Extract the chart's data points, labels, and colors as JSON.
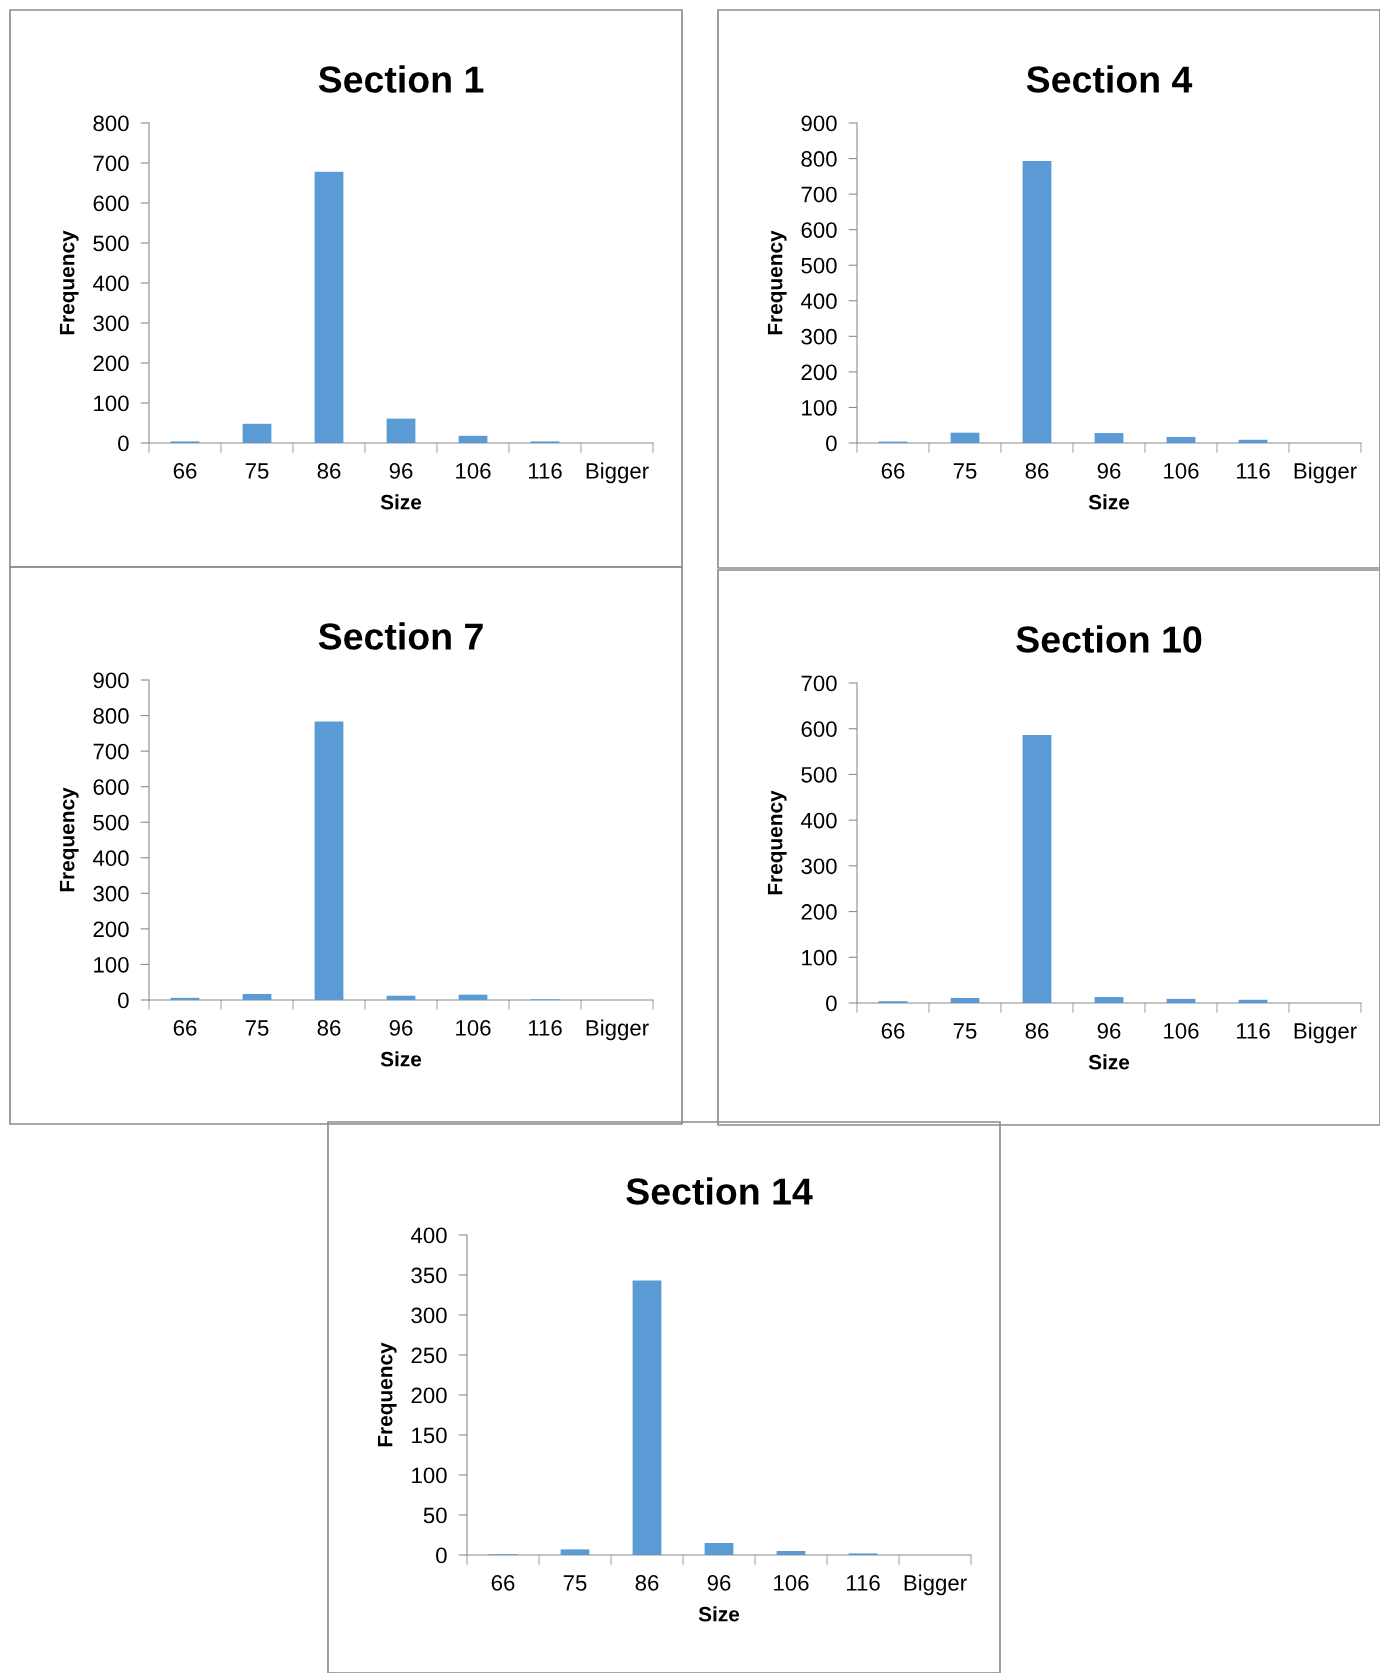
{
  "chart_data": [
    {
      "type": "bar",
      "title": "Section 1",
      "xlabel": "Size",
      "ylabel": "Frequency",
      "categories": [
        "66",
        "75",
        "86",
        "96",
        "106",
        "116",
        "Bigger"
      ],
      "values": [
        4,
        48,
        678,
        61,
        18,
        4,
        0
      ],
      "color": "#5b9bd5",
      "ylim": [
        0,
        800
      ],
      "yticks": [
        0,
        100,
        200,
        300,
        400,
        500,
        600,
        700,
        800
      ],
      "grid": false,
      "legend": false
    },
    {
      "type": "bar",
      "title": "Section 4",
      "xlabel": "Size",
      "ylabel": "Frequency",
      "categories": [
        "66",
        "75",
        "86",
        "96",
        "106",
        "116",
        "Bigger"
      ],
      "values": [
        4,
        29,
        793,
        28,
        17,
        9,
        0
      ],
      "color": "#5b9bd5",
      "ylim": [
        0,
        900
      ],
      "yticks": [
        0,
        100,
        200,
        300,
        400,
        500,
        600,
        700,
        800,
        900
      ],
      "grid": false,
      "legend": false
    },
    {
      "type": "bar",
      "title": "Section 7",
      "xlabel": "Size",
      "ylabel": "Frequency",
      "categories": [
        "66",
        "75",
        "86",
        "96",
        "106",
        "116",
        "Bigger"
      ],
      "values": [
        6,
        17,
        783,
        12,
        15,
        2,
        0
      ],
      "color": "#5b9bd5",
      "ylim": [
        0,
        900
      ],
      "yticks": [
        0,
        100,
        200,
        300,
        400,
        500,
        600,
        700,
        800,
        900
      ],
      "grid": false,
      "legend": false
    },
    {
      "type": "bar",
      "title": "Section 10",
      "xlabel": "Size",
      "ylabel": "Frequency",
      "categories": [
        "66",
        "75",
        "86",
        "96",
        "106",
        "116",
        "Bigger"
      ],
      "values": [
        4,
        11,
        586,
        13,
        9,
        7,
        0
      ],
      "color": "#5b9bd5",
      "ylim": [
        0,
        700
      ],
      "yticks": [
        0,
        100,
        200,
        300,
        400,
        500,
        600,
        700
      ],
      "grid": false,
      "legend": false
    },
    {
      "type": "bar",
      "title": "Section 14",
      "xlabel": "Size",
      "ylabel": "Frequency",
      "categories": [
        "66",
        "75",
        "86",
        "96",
        "106",
        "116",
        "Bigger"
      ],
      "values": [
        1,
        7,
        343,
        15,
        5,
        2,
        0
      ],
      "color": "#5b9bd5",
      "ylim": [
        0,
        400
      ],
      "yticks": [
        0,
        50,
        100,
        150,
        200,
        250,
        300,
        350,
        400
      ],
      "grid": false,
      "legend": false
    }
  ]
}
